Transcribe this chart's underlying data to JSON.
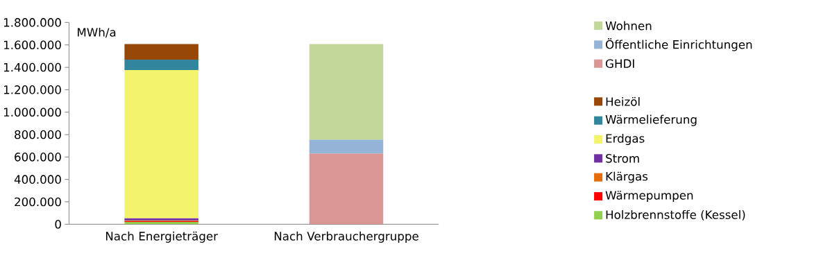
{
  "chart_data": {
    "type": "bar",
    "stacked": true,
    "ylabel": "MWh/a",
    "categories": [
      "Nach Energieträger",
      "Nach Verbrauchergruppe"
    ],
    "series": [
      {
        "name": "Holzbrennstoffe (Kessel)",
        "color": "#92d050",
        "values": [
          20000,
          null
        ]
      },
      {
        "name": "Wärmepumpen",
        "color": "#ff0000",
        "values": [
          8000,
          null
        ]
      },
      {
        "name": "Klärgas",
        "color": "#e46c0a",
        "values": [
          7000,
          null
        ]
      },
      {
        "name": "Strom",
        "color": "#7030a0",
        "values": [
          20000,
          null
        ]
      },
      {
        "name": "Erdgas",
        "color": "#f4f46c",
        "values": [
          1321000,
          null
        ]
      },
      {
        "name": "Wärmelieferung",
        "color": "#31859c",
        "values": [
          92000,
          null
        ]
      },
      {
        "name": "Heizöl",
        "color": "#974706",
        "values": [
          140000,
          null
        ]
      },
      {
        "name": "GHDI",
        "color": "#d99694",
        "values": [
          null,
          632000
        ]
      },
      {
        "name": "Öffentliche Einrichtungen",
        "color": "#95b3d7",
        "values": [
          null,
          123000
        ]
      },
      {
        "name": "Wohnen",
        "color": "#c4d79b",
        "values": [
          null,
          853000
        ]
      }
    ],
    "ylim": [
      0,
      1800000
    ],
    "yticks": [
      0,
      {
        "value": 200000,
        "label": "200.000"
      },
      {
        "value": 400000,
        "label": "400.000"
      },
      {
        "value": 600000,
        "label": "600.000"
      },
      {
        "value": 800000,
        "label": "800.000"
      },
      {
        "value": 1000000,
        "label": "1.000.000"
      },
      {
        "value": 1200000,
        "label": "1.200.000"
      },
      {
        "value": 1400000,
        "label": "1.400.000"
      },
      {
        "value": 1600000,
        "label": "1.600.000"
      },
      {
        "value": 1800000,
        "label": "1.800.000"
      }
    ],
    "grid": false,
    "legend": "right"
  }
}
